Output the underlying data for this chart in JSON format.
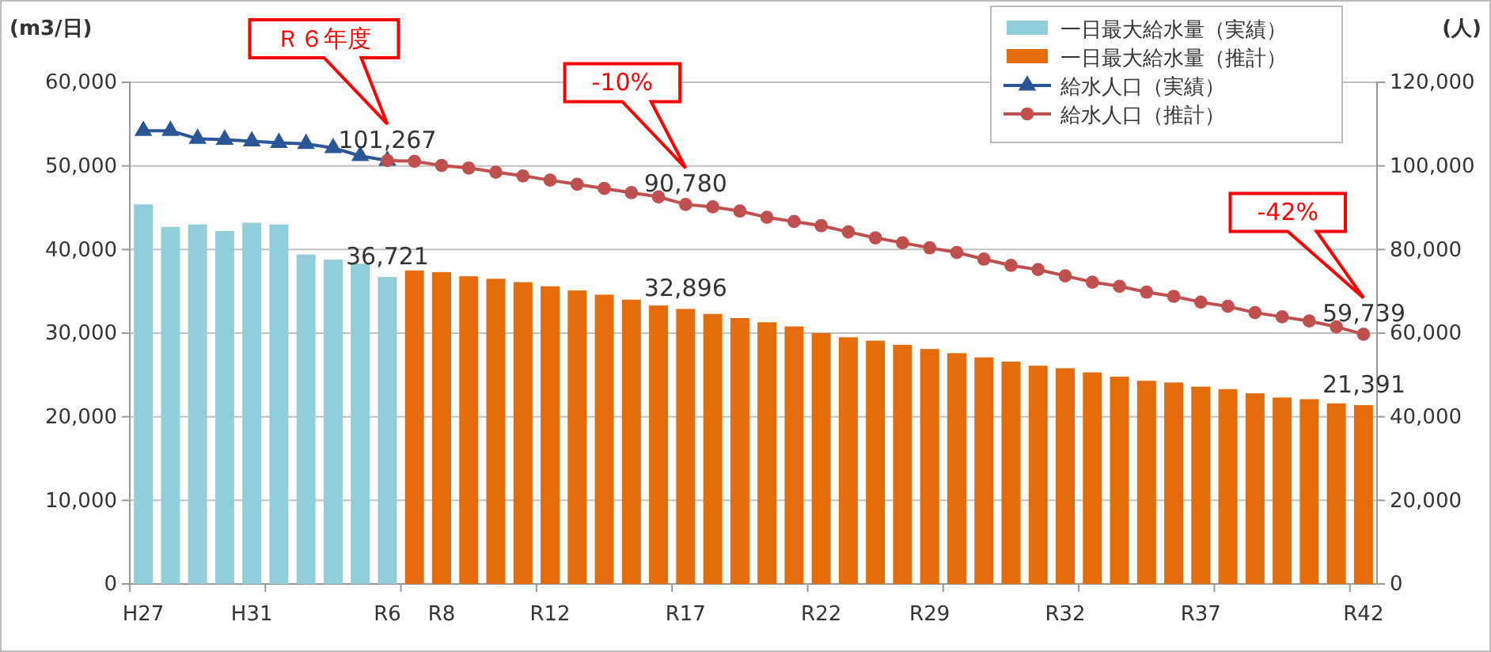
{
  "chart_data": {
    "type": "bar",
    "ylabel": "(m3/日)",
    "y2label": "(人)",
    "categories": [
      "H27",
      null,
      null,
      null,
      "H31",
      null,
      null,
      null,
      null,
      "R6",
      null,
      "R8",
      null,
      null,
      null,
      "R12",
      null,
      null,
      null,
      null,
      "R17",
      null,
      null,
      null,
      null,
      "R22",
      null,
      null,
      null,
      "R29",
      null,
      null,
      null,
      null,
      "R32",
      null,
      null,
      null,
      null,
      "R37",
      null,
      null,
      null,
      null,
      null,
      "R42"
    ],
    "ylim": [
      0,
      60000
    ],
    "yticks": [
      {
        "value": 0,
        "label": "0"
      },
      {
        "value": 10000,
        "label": "10,000"
      },
      {
        "value": 20000,
        "label": "20,000"
      },
      {
        "value": 30000,
        "label": "30,000"
      },
      {
        "value": 40000,
        "label": "40,000"
      },
      {
        "value": 50000,
        "label": "50,000"
      },
      {
        "value": 60000,
        "label": "60,000"
      }
    ],
    "y2lim": [
      0,
      120000
    ],
    "y2ticks": [
      {
        "value": 0,
        "label": "0"
      },
      {
        "value": 20000,
        "label": "20,000"
      },
      {
        "value": 40000,
        "label": "40,000"
      },
      {
        "value": 60000,
        "label": "60,000"
      },
      {
        "value": 80000,
        "label": "80,000"
      },
      {
        "value": 100000,
        "label": "100,000"
      },
      {
        "value": 120000,
        "label": "120,000"
      }
    ],
    "grid": "y",
    "legend": "top right",
    "series": [
      {
        "name": "一日最大給水量（実績）",
        "color": "#92cddc",
        "values": [
          45400,
          42700,
          43000,
          42200,
          43200,
          43000,
          39400,
          38800,
          38300,
          36721,
          null,
          null,
          null,
          null,
          null,
          null,
          null,
          null,
          null,
          null,
          null,
          null,
          null,
          null,
          null,
          null,
          null,
          null,
          null,
          null,
          null,
          null,
          null,
          null,
          null,
          null,
          null,
          null,
          null,
          null,
          null,
          null,
          null,
          null,
          null,
          null
        ],
        "value_labels": [
          null,
          null,
          null,
          null,
          null,
          null,
          null,
          null,
          null,
          "36,721",
          null,
          null,
          null,
          null,
          null,
          null,
          null,
          null,
          null,
          null,
          null,
          null,
          null,
          null,
          null,
          null,
          null,
          null,
          null,
          null,
          null,
          null,
          null,
          null,
          null,
          null,
          null,
          null,
          null,
          null,
          null,
          null,
          null,
          null,
          null,
          null
        ]
      },
      {
        "name": "一日最大給水量（推計）",
        "color": "#e46c0a",
        "values": [
          null,
          null,
          null,
          null,
          null,
          null,
          null,
          null,
          null,
          null,
          37500,
          37300,
          36800,
          36500,
          36100,
          35600,
          35100,
          34600,
          34000,
          33300,
          32896,
          32300,
          31800,
          31300,
          30800,
          30000,
          29500,
          29100,
          28600,
          28100,
          27600,
          27100,
          26600,
          26100,
          25800,
          25300,
          24800,
          24300,
          24100,
          23600,
          23300,
          22800,
          22300,
          22100,
          21600,
          21391
        ],
        "value_labels": [
          null,
          null,
          null,
          null,
          null,
          null,
          null,
          null,
          null,
          null,
          null,
          null,
          null,
          null,
          null,
          null,
          null,
          null,
          null,
          null,
          "32,896",
          null,
          null,
          null,
          null,
          null,
          null,
          null,
          null,
          null,
          null,
          null,
          null,
          null,
          null,
          null,
          null,
          null,
          null,
          null,
          null,
          null,
          null,
          null,
          null,
          "21,391"
        ]
      },
      {
        "name": "給水人口（実績）",
        "type": "line",
        "axis": "y2",
        "marker": "triangle",
        "color": "#2a5597",
        "values": [
          108400,
          108400,
          106500,
          106300,
          105900,
          105500,
          105300,
          104300,
          102400,
          101267,
          null,
          null,
          null,
          null,
          null,
          null,
          null,
          null,
          null,
          null,
          null,
          null,
          null,
          null,
          null,
          null,
          null,
          null,
          null,
          null,
          null,
          null,
          null,
          null,
          null,
          null,
          null,
          null,
          null,
          null,
          null,
          null,
          null,
          null,
          null,
          null
        ],
        "value_labels": [
          null,
          null,
          null,
          null,
          null,
          null,
          null,
          null,
          null,
          "101,267",
          null,
          null,
          null,
          null,
          null,
          null,
          null,
          null,
          null,
          null,
          null,
          null,
          null,
          null,
          null,
          null,
          null,
          null,
          null,
          null,
          null,
          null,
          null,
          null,
          null,
          null,
          null,
          null,
          null,
          null,
          null,
          null,
          null,
          null,
          null,
          null
        ]
      },
      {
        "name": "給水人口（推計）",
        "type": "line",
        "axis": "y2",
        "marker": "circle",
        "color": "#c0504d",
        "values": [
          null,
          null,
          null,
          null,
          null,
          null,
          null,
          null,
          null,
          101300,
          101100,
          100100,
          99500,
          98500,
          97600,
          96600,
          95600,
          94600,
          93600,
          92600,
          90780,
          90200,
          89200,
          87700,
          86700,
          85700,
          84200,
          82800,
          81600,
          80400,
          79300,
          77700,
          76200,
          75200,
          73700,
          72200,
          71200,
          69800,
          68800,
          67400,
          66400,
          64900,
          63900,
          62900,
          61500,
          59739
        ],
        "value_labels": [
          null,
          null,
          null,
          null,
          null,
          null,
          null,
          null,
          null,
          null,
          null,
          null,
          null,
          null,
          null,
          null,
          null,
          null,
          null,
          null,
          "90,780",
          null,
          null,
          null,
          null,
          null,
          null,
          null,
          null,
          null,
          null,
          null,
          null,
          null,
          null,
          null,
          null,
          null,
          null,
          null,
          null,
          null,
          null,
          null,
          null,
          "59,739"
        ]
      }
    ],
    "annotations": [
      "Ｒ６年度",
      "-10%",
      "-42%"
    ]
  }
}
